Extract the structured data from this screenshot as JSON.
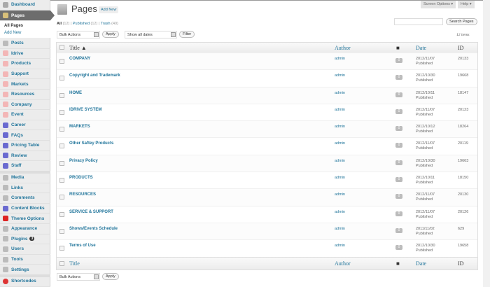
{
  "sidebar": {
    "dashboard": "Dashboard",
    "pages": "Pages",
    "all_pages": "All Pages",
    "add_new": "Add New",
    "group1": [
      {
        "label": "Posts",
        "icon": "pin-icon"
      },
      {
        "label": "Idrive",
        "icon": "circle-icon"
      },
      {
        "label": "Products",
        "icon": "circle-icon"
      },
      {
        "label": "Support",
        "icon": "circle-icon"
      },
      {
        "label": "Markets",
        "icon": "circle-icon"
      },
      {
        "label": "Resources",
        "icon": "circle-icon"
      },
      {
        "label": "Company",
        "icon": "circle-icon"
      },
      {
        "label": "Event",
        "icon": "circle-icon"
      },
      {
        "label": "Career",
        "icon": "blocks-icon"
      },
      {
        "label": "FAQs",
        "icon": "blocks-icon"
      },
      {
        "label": "Pricing Table",
        "icon": "blocks-icon"
      },
      {
        "label": "Review",
        "icon": "blocks-icon"
      },
      {
        "label": "Staff",
        "icon": "blocks-icon"
      }
    ],
    "group2": [
      {
        "label": "Media",
        "icon": "media-icon"
      },
      {
        "label": "Links",
        "icon": "link-icon"
      },
      {
        "label": "Comments",
        "icon": "comment-icon"
      },
      {
        "label": "Content Blocks",
        "icon": "blocks-icon"
      },
      {
        "label": "Theme Options",
        "icon": "theme-icon"
      },
      {
        "label": "Appearance",
        "icon": "appearance-icon"
      },
      {
        "label": "Plugins",
        "icon": "plugin-icon",
        "badge": "3"
      },
      {
        "label": "Users",
        "icon": "users-icon"
      },
      {
        "label": "Tools",
        "icon": "tools-icon"
      },
      {
        "label": "Settings",
        "icon": "settings-icon"
      }
    ],
    "shortcodes": "Shortcodes"
  },
  "header": {
    "screen_options": "Screen Options ▾",
    "help": "Help ▾",
    "title": "Pages",
    "add_new": "Add New"
  },
  "filters": {
    "all": "All",
    "all_count": "(12)",
    "published": "Published",
    "published_count": "(12)",
    "trash": "Trash",
    "trash_count": "(40)",
    "search_button": "Search Pages",
    "bulk_actions": "Bulk Actions",
    "apply": "Apply",
    "dates": "Show all dates",
    "filter": "Filter",
    "items": "12 items"
  },
  "table": {
    "columns": {
      "title": "Title ▲",
      "title_foot": "Title",
      "author": "Author",
      "date": "Date",
      "id": "ID"
    },
    "rows": [
      {
        "title": "COMPANY",
        "author": "admin",
        "comments": "0",
        "date": "2012/11/07",
        "status": "Published",
        "id": "20133"
      },
      {
        "title": "Copyright and Trademark",
        "author": "admin",
        "comments": "0",
        "date": "2012/10/30",
        "status": "Published",
        "id": "19668"
      },
      {
        "title": "HOME",
        "author": "admin",
        "comments": "0",
        "date": "2012/10/11",
        "status": "Published",
        "id": "18147"
      },
      {
        "title": "IDRIVE SYSTEM",
        "author": "admin",
        "comments": "0",
        "date": "2012/11/07",
        "status": "Published",
        "id": "20123"
      },
      {
        "title": "MARKETS",
        "author": "admin",
        "comments": "0",
        "date": "2012/10/12",
        "status": "Published",
        "id": "18264"
      },
      {
        "title": "Other Saftey Products",
        "author": "admin",
        "comments": "0",
        "date": "2012/11/07",
        "status": "Published",
        "id": "20119"
      },
      {
        "title": "Privacy Policy",
        "author": "admin",
        "comments": "0",
        "date": "2012/10/30",
        "status": "Published",
        "id": "19663"
      },
      {
        "title": "PRODUCTS",
        "author": "admin",
        "comments": "0",
        "date": "2012/10/11",
        "status": "Published",
        "id": "18150"
      },
      {
        "title": "RESOURCES",
        "author": "admin",
        "comments": "0",
        "date": "2012/11/07",
        "status": "Published",
        "id": "20130"
      },
      {
        "title": "SERVICE & SUPPORT",
        "author": "admin",
        "comments": "0",
        "date": "2012/11/07",
        "status": "Published",
        "id": "20126"
      },
      {
        "title": "Shows/Events Schedule",
        "author": "admin",
        "comments": "0",
        "date": "2011/11/02",
        "status": "Published",
        "id": "629"
      },
      {
        "title": "Terms of Use",
        "author": "admin",
        "comments": "0",
        "date": "2012/10/30",
        "status": "Published",
        "id": "19658"
      }
    ]
  }
}
